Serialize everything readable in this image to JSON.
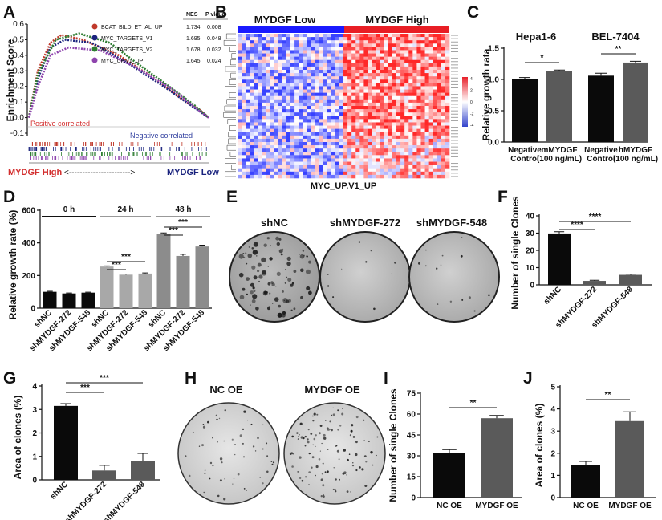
{
  "figure": {
    "panel_letters": [
      "A",
      "B",
      "C",
      "D",
      "E",
      "F",
      "G",
      "H",
      "I",
      "J"
    ]
  },
  "colors": {
    "black_bar": "#0a0a0a",
    "dark_gray_bar": "#5a5a5a",
    "light_gray_bar": "#8c8c8c",
    "heat_low": "#3344cc",
    "heat_high": "#e8202a",
    "blue_band": "#1a1aff",
    "red_band": "#e81e25"
  },
  "chart_data": [
    {
      "panel": "A",
      "type": "line",
      "ylabel": "Enrichment Score",
      "ylim": [
        -0.1,
        0.6
      ],
      "yticks": [
        "-0.1",
        "0.0",
        "0.1",
        "0.2",
        "0.3",
        "0.4",
        "0.5",
        "0.6"
      ],
      "table_headers": [
        "NES",
        "P vlaue"
      ],
      "series": [
        {
          "name": "BCAT_BILD_ET_AL_UP",
          "nes": "1.734",
          "p": "0.008",
          "color": "#c0392b",
          "points": [
            [
              0,
              0
            ],
            [
              0.05,
              0.3
            ],
            [
              0.12,
              0.48
            ],
            [
              0.18,
              0.53
            ],
            [
              0.3,
              0.5
            ],
            [
              0.5,
              0.4
            ],
            [
              0.7,
              0.25
            ],
            [
              0.85,
              0.12
            ],
            [
              0.95,
              0.05
            ],
            [
              1,
              0
            ]
          ]
        },
        {
          "name": "MYC_TARGETS_V1",
          "nes": "1.695",
          "p": "0.048",
          "color": "#1a237e",
          "points": [
            [
              0,
              0
            ],
            [
              0.05,
              0.25
            ],
            [
              0.12,
              0.45
            ],
            [
              0.2,
              0.5
            ],
            [
              0.35,
              0.48
            ],
            [
              0.55,
              0.35
            ],
            [
              0.75,
              0.2
            ],
            [
              0.9,
              0.08
            ],
            [
              1,
              0
            ]
          ]
        },
        {
          "name": "MYC_TARGETS_V2",
          "nes": "1.678",
          "p": "0.032",
          "color": "#2e7d32",
          "points": [
            [
              0,
              0
            ],
            [
              0.05,
              0.28
            ],
            [
              0.15,
              0.5
            ],
            [
              0.28,
              0.54
            ],
            [
              0.45,
              0.48
            ],
            [
              0.6,
              0.35
            ],
            [
              0.78,
              0.2
            ],
            [
              0.92,
              0.08
            ],
            [
              1,
              0
            ]
          ]
        },
        {
          "name": "MYC_UP.V1_UP",
          "nes": "1.645",
          "p": "0.024",
          "color": "#8e44ad",
          "points": [
            [
              0,
              0
            ],
            [
              0.05,
              0.2
            ],
            [
              0.12,
              0.4
            ],
            [
              0.22,
              0.45
            ],
            [
              0.4,
              0.43
            ],
            [
              0.6,
              0.32
            ],
            [
              0.8,
              0.18
            ],
            [
              0.93,
              0.06
            ],
            [
              1,
              0
            ]
          ]
        }
      ],
      "annotation_pos": "Positive correlated",
      "annotation_neg": "Negative correlated",
      "arrow_left": "MYDGF High",
      "arrow_mid": "<----------------------->",
      "arrow_right": "MYDGF Low"
    },
    {
      "panel": "B",
      "type": "heatmap",
      "group_low": "MYDGF Low",
      "group_high": "MYDGF High",
      "xlabel": "MYC_UP.V1_UP",
      "legend_ticks": [
        "4",
        "2",
        "0",
        "-2",
        "-4"
      ]
    },
    {
      "panel": "C",
      "type": "bar",
      "titles": [
        "Hepa1-6",
        "BEL-7404"
      ],
      "ylabel": "Relative growth rata",
      "ylim": [
        0,
        1.5
      ],
      "yticks": [
        "0.0",
        "0.5",
        "1.0",
        "1.5"
      ],
      "categories": [
        "Negative Control",
        "mMYDGF (100 ng/mL)",
        "Negative Control",
        "hMYDGF (100 ng/mL)"
      ],
      "values": [
        1.0,
        1.13,
        1.06,
        1.27
      ],
      "errors": [
        0.03,
        0.02,
        0.04,
        0.02
      ],
      "significance": [
        "*",
        "**"
      ]
    },
    {
      "panel": "D",
      "type": "bar",
      "groups": [
        "0 h",
        "24 h",
        "48 h"
      ],
      "ylabel": "Relative growth rate (%)",
      "ylim": [
        0,
        600
      ],
      "yticks": [
        "0",
        "200",
        "400",
        "600"
      ],
      "categories": [
        "shNC",
        "shMYDGF-272",
        "shMYDGF-548",
        "shNC",
        "shMYDGF-272",
        "shMYDGF-548",
        "shNC",
        "shMYDGF-272",
        "shMYDGF-548"
      ],
      "values": [
        100,
        90,
        95,
        255,
        205,
        212,
        455,
        320,
        378
      ],
      "errors": [
        3,
        3,
        3,
        4,
        4,
        4,
        6,
        10,
        8
      ],
      "significance": [
        "***",
        "***",
        "***",
        "***"
      ]
    },
    {
      "panel": "F",
      "type": "bar",
      "ylabel": "Number of single Clones",
      "ylim": [
        0,
        40
      ],
      "yticks": [
        "0",
        "10",
        "20",
        "30",
        "40"
      ],
      "categories": [
        "shNC",
        "shMYDGF-272",
        "shMYDGF-548"
      ],
      "values": [
        29.8,
        2.3,
        5.8
      ],
      "errors": [
        1.0,
        0.4,
        0.4
      ],
      "significance": [
        "****",
        "****"
      ]
    },
    {
      "panel": "G",
      "type": "bar",
      "ylabel": "Area of clones (%)",
      "ylim": [
        0,
        4
      ],
      "yticks": [
        "0",
        "1",
        "2",
        "3",
        "4"
      ],
      "categories": [
        "shNC",
        "shMYDGF-272",
        "shMYDGF-548"
      ],
      "values": [
        3.15,
        0.4,
        0.8
      ],
      "errors": [
        0.1,
        0.22,
        0.33
      ],
      "significance": [
        "***",
        "***"
      ]
    },
    {
      "panel": "I",
      "type": "bar",
      "ylabel": "Number of single Clones",
      "ylim": [
        0,
        75
      ],
      "yticks": [
        "0",
        "15",
        "30",
        "45",
        "60",
        "75"
      ],
      "categories": [
        "NC OE",
        "MYDGF OE"
      ],
      "values": [
        32,
        57
      ],
      "errors": [
        2.5,
        2.0
      ],
      "significance": [
        "**"
      ]
    },
    {
      "panel": "J",
      "type": "bar",
      "ylabel": "Area of clones (%)",
      "ylim": [
        0,
        5
      ],
      "yticks": [
        "0",
        "1",
        "2",
        "3",
        "4",
        "5"
      ],
      "categories": [
        "NC OE",
        "MYDGF OE"
      ],
      "values": [
        1.45,
        3.45
      ],
      "errors": [
        0.18,
        0.42
      ],
      "significance": [
        "**"
      ]
    }
  ],
  "panelE": {
    "labels": [
      "shNC",
      "shMYDGF-272",
      "shMYDGF-548"
    ]
  },
  "panelH": {
    "labels": [
      "NC OE",
      "MYDGF OE"
    ]
  }
}
